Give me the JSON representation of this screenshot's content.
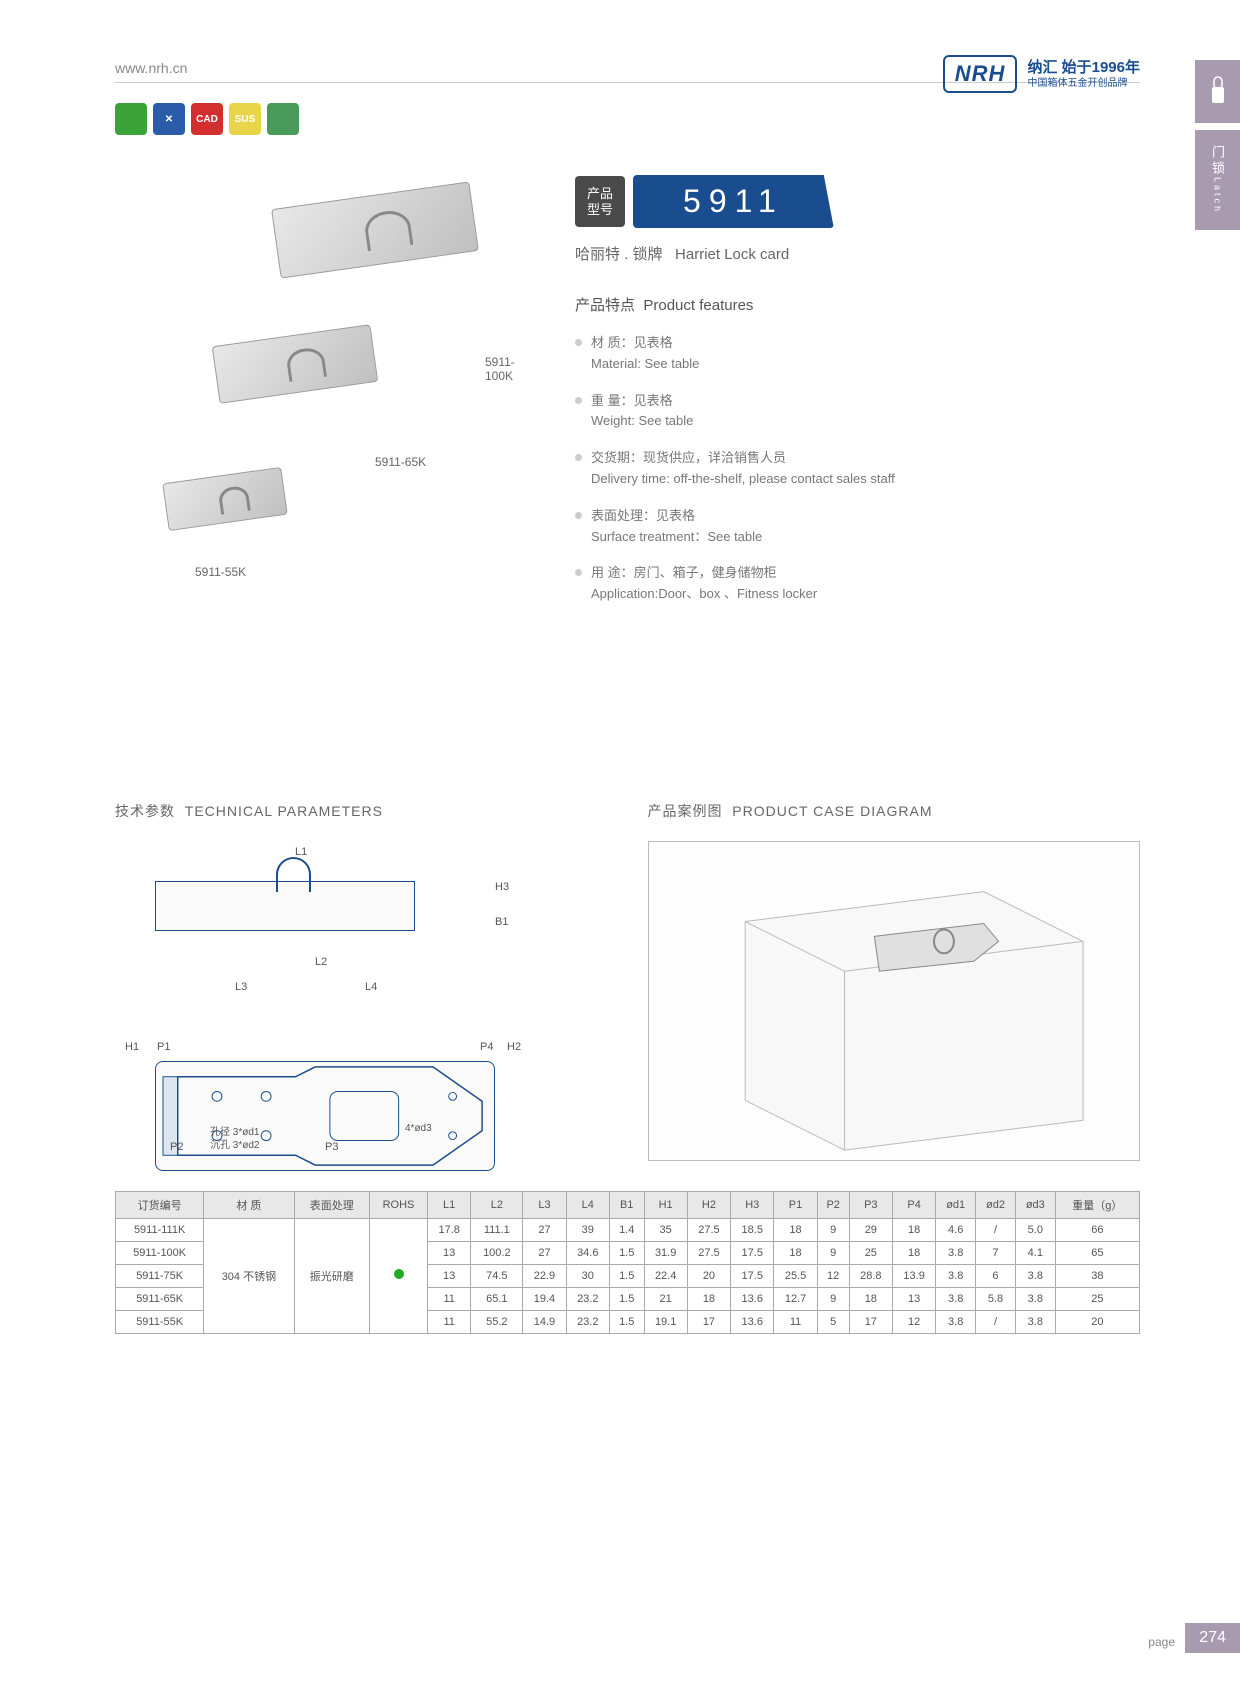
{
  "header": {
    "url": "www.nrh.cn",
    "logo": "NRH",
    "logo_cn": "纳汇 始于1996年",
    "logo_sub": "中国箱体五金开创品牌",
    "reg": "®"
  },
  "side": {
    "tab1": "Latch",
    "tab2": "门锁"
  },
  "icons": [
    {
      "bg": "#3ba439",
      "txt": ""
    },
    {
      "bg": "#2a5caa",
      "txt": "✕"
    },
    {
      "bg": "#d32f2f",
      "txt": "CAD"
    },
    {
      "bg": "#e8d54a",
      "txt": "SUS"
    },
    {
      "bg": "#4a9a5a",
      "txt": ""
    }
  ],
  "products": {
    "labels": {
      "p1": "5911-100K",
      "p2": "5911-65K",
      "p3": "5911-55K"
    }
  },
  "model": {
    "label_cn": "产品",
    "label_cn2": "型号",
    "number": "5911"
  },
  "subtitle": {
    "cn": "哈丽特 . 锁牌",
    "en": "Harriet Lock card"
  },
  "features": {
    "title_cn": "产品特点",
    "title_en": "Product features",
    "items": [
      {
        "cn": "材 质：见表格",
        "en": "Material: See table"
      },
      {
        "cn": "重 量：见表格",
        "en": "Weight: See table"
      },
      {
        "cn": "交货期：现货供应，详洽销售人员",
        "en": "Delivery time: off-the-shelf, please contact sales staff"
      },
      {
        "cn": "表面处理：见表格",
        "en": "Surface treatment：See table"
      },
      {
        "cn": "用 途：房门、箱子，健身储物柜",
        "en": "Application:Door、box 、Fitness locker"
      }
    ]
  },
  "sections": {
    "tech": {
      "cn": "技术参数",
      "en": "TECHNICAL PARAMETERS"
    },
    "case": {
      "cn": "产品案例图",
      "en": "PRODUCT CASE DIAGRAM"
    }
  },
  "dims": {
    "L1": "L1",
    "L2": "L2",
    "L3": "L3",
    "L4": "L4",
    "H1": "H1",
    "H2": "H2",
    "H3": "H3",
    "B1": "B1",
    "P1": "P1",
    "P2": "P2",
    "P3": "P3",
    "P4": "P4",
    "note1": "孔径 3*ød1",
    "note2": "沉孔 3*ød2",
    "note3": "4*ød3"
  },
  "table": {
    "headers": [
      "订货编号",
      "材 质",
      "表面处理",
      "ROHS",
      "L1",
      "L2",
      "L3",
      "L4",
      "B1",
      "H1",
      "H2",
      "H3",
      "P1",
      "P2",
      "P3",
      "P4",
      "ød1",
      "ød2",
      "ød3",
      "重量（g）"
    ],
    "material": "304 不锈钢",
    "surface": "振光研磨",
    "rows": [
      [
        "5911-111K",
        "17.8",
        "111.1",
        "27",
        "39",
        "1.4",
        "35",
        "27.5",
        "18.5",
        "18",
        "9",
        "29",
        "18",
        "4.6",
        "/",
        "5.0",
        "66"
      ],
      [
        "5911-100K",
        "13",
        "100.2",
        "27",
        "34.6",
        "1.5",
        "31.9",
        "27.5",
        "17.5",
        "18",
        "9",
        "25",
        "18",
        "3.8",
        "7",
        "4.1",
        "65"
      ],
      [
        "5911-75K",
        "13",
        "74.5",
        "22.9",
        "30",
        "1.5",
        "22.4",
        "20",
        "17.5",
        "25.5",
        "12",
        "28.8",
        "13.9",
        "3.8",
        "6",
        "3.8",
        "38"
      ],
      [
        "5911-65K",
        "11",
        "65.1",
        "19.4",
        "23.2",
        "1.5",
        "21",
        "18",
        "13.6",
        "12.7",
        "9",
        "18",
        "13",
        "3.8",
        "5.8",
        "3.8",
        "25"
      ],
      [
        "5911-55K",
        "11",
        "55.2",
        "14.9",
        "23.2",
        "1.5",
        "19.1",
        "17",
        "13.6",
        "11",
        "5",
        "17",
        "12",
        "3.8",
        "/",
        "3.8",
        "20"
      ]
    ]
  },
  "page": {
    "label": "page",
    "num": "274"
  }
}
